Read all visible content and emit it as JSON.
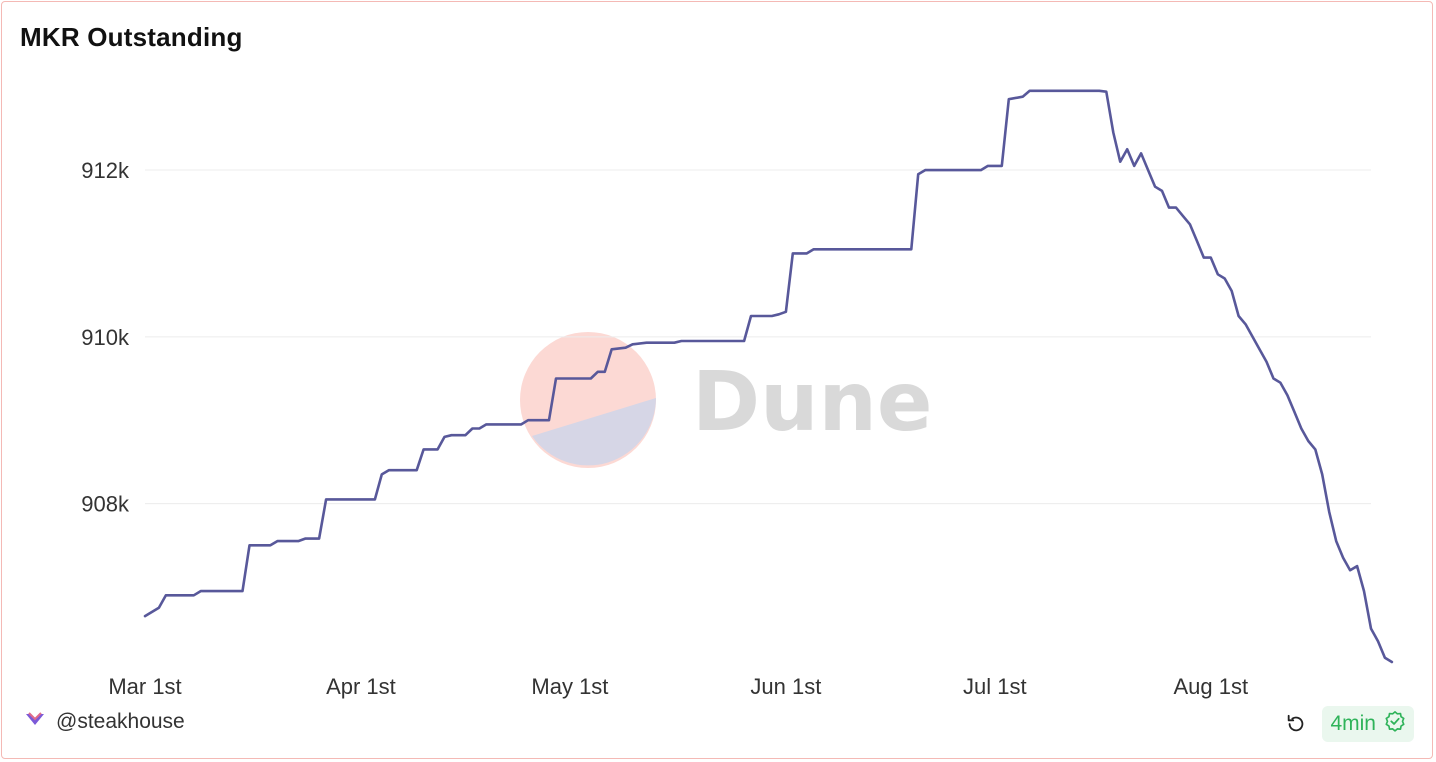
{
  "title": "MKR Outstanding",
  "author": "@steakhouse",
  "refresh_age": "4min",
  "watermark": "Dune",
  "icons": {
    "author": "steakhouse-logo-icon",
    "refresh": "refresh-icon",
    "verified": "check-badge-icon"
  },
  "colors": {
    "line": "#58589a",
    "badge_text": "#2fb35a",
    "border": "#f4b9b5"
  },
  "chart_data": {
    "type": "line",
    "title": "MKR Outstanding",
    "xlabel": "",
    "ylabel": "",
    "x_tick_labels": [
      "Mar 1st",
      "Apr 1st",
      "May 1st",
      "Jun 1st",
      "Jul 1st",
      "Aug 1st"
    ],
    "x_tick_dates": [
      "2024-03-01",
      "2024-04-01",
      "2024-05-01",
      "2024-06-01",
      "2024-07-01",
      "2024-08-01"
    ],
    "y_tick_labels": [
      "908k",
      "910k",
      "912k"
    ],
    "y_tick_values": [
      908000,
      910000,
      912000
    ],
    "xlim": [
      "2024-03-01",
      "2024-08-24"
    ],
    "ylim": [
      906100,
      913200
    ],
    "grid": "horizontal",
    "legend": "none",
    "series": [
      {
        "points": [
          [
            "2024-03-01",
            906650
          ],
          [
            "2024-03-03",
            906750
          ],
          [
            "2024-03-04",
            906900
          ],
          [
            "2024-03-08",
            906900
          ],
          [
            "2024-03-09",
            906950
          ],
          [
            "2024-03-15",
            906950
          ],
          [
            "2024-03-16",
            907500
          ],
          [
            "2024-03-19",
            907500
          ],
          [
            "2024-03-20",
            907550
          ],
          [
            "2024-03-23",
            907550
          ],
          [
            "2024-03-24",
            907580
          ],
          [
            "2024-03-26",
            907580
          ],
          [
            "2024-03-27",
            908050
          ],
          [
            "2024-04-03",
            908050
          ],
          [
            "2024-04-04",
            908350
          ],
          [
            "2024-04-05",
            908400
          ],
          [
            "2024-04-09",
            908400
          ],
          [
            "2024-04-10",
            908650
          ],
          [
            "2024-04-12",
            908650
          ],
          [
            "2024-04-13",
            908800
          ],
          [
            "2024-04-14",
            908820
          ],
          [
            "2024-04-16",
            908820
          ],
          [
            "2024-04-17",
            908900
          ],
          [
            "2024-04-18",
            908900
          ],
          [
            "2024-04-19",
            908950
          ],
          [
            "2024-04-24",
            908950
          ],
          [
            "2024-04-25",
            909000
          ],
          [
            "2024-04-28",
            909000
          ],
          [
            "2024-04-29",
            909500
          ],
          [
            "2024-05-04",
            909500
          ],
          [
            "2024-05-05",
            909580
          ],
          [
            "2024-05-06",
            909580
          ],
          [
            "2024-05-07",
            909850
          ],
          [
            "2024-05-09",
            909870
          ],
          [
            "2024-05-10",
            909910
          ],
          [
            "2024-05-12",
            909930
          ],
          [
            "2024-05-16",
            909930
          ],
          [
            "2024-05-17",
            909950
          ],
          [
            "2024-05-26",
            909950
          ],
          [
            "2024-05-27",
            910250
          ],
          [
            "2024-05-30",
            910250
          ],
          [
            "2024-05-31",
            910270
          ],
          [
            "2024-06-01",
            910300
          ],
          [
            "2024-06-02",
            911000
          ],
          [
            "2024-06-04",
            911000
          ],
          [
            "2024-06-05",
            911050
          ],
          [
            "2024-06-19",
            911050
          ],
          [
            "2024-06-20",
            911950
          ],
          [
            "2024-06-21",
            912000
          ],
          [
            "2024-06-29",
            912000
          ],
          [
            "2024-06-30",
            912050
          ],
          [
            "2024-07-02",
            912050
          ],
          [
            "2024-07-03",
            912850
          ],
          [
            "2024-07-05",
            912880
          ],
          [
            "2024-07-06",
            912950
          ],
          [
            "2024-07-16",
            912950
          ],
          [
            "2024-07-17",
            912940
          ],
          [
            "2024-07-18",
            912450
          ],
          [
            "2024-07-19",
            912100
          ],
          [
            "2024-07-20",
            912250
          ],
          [
            "2024-07-21",
            912050
          ],
          [
            "2024-07-22",
            912200
          ],
          [
            "2024-07-23",
            912000
          ],
          [
            "2024-07-24",
            911800
          ],
          [
            "2024-07-25",
            911750
          ],
          [
            "2024-07-26",
            911550
          ],
          [
            "2024-07-27",
            911550
          ],
          [
            "2024-07-28",
            911450
          ],
          [
            "2024-07-29",
            911350
          ],
          [
            "2024-07-30",
            911150
          ],
          [
            "2024-07-31",
            910950
          ],
          [
            "2024-08-01",
            910950
          ],
          [
            "2024-08-02",
            910750
          ],
          [
            "2024-08-03",
            910700
          ],
          [
            "2024-08-04",
            910550
          ],
          [
            "2024-08-05",
            910250
          ],
          [
            "2024-08-06",
            910150
          ],
          [
            "2024-08-08",
            909850
          ],
          [
            "2024-08-09",
            909700
          ],
          [
            "2024-08-10",
            909500
          ],
          [
            "2024-08-11",
            909450
          ],
          [
            "2024-08-12",
            909300
          ],
          [
            "2024-08-13",
            909100
          ],
          [
            "2024-08-14",
            908900
          ],
          [
            "2024-08-15",
            908750
          ],
          [
            "2024-08-16",
            908650
          ],
          [
            "2024-08-17",
            908350
          ],
          [
            "2024-08-18",
            907900
          ],
          [
            "2024-08-19",
            907550
          ],
          [
            "2024-08-20",
            907350
          ],
          [
            "2024-08-21",
            907200
          ],
          [
            "2024-08-22",
            907250
          ],
          [
            "2024-08-23",
            906950
          ],
          [
            "2024-08-24",
            906500
          ],
          [
            "2024-08-25",
            906350
          ],
          [
            "2024-08-26",
            906150
          ],
          [
            "2024-08-27",
            906100
          ]
        ]
      }
    ]
  }
}
